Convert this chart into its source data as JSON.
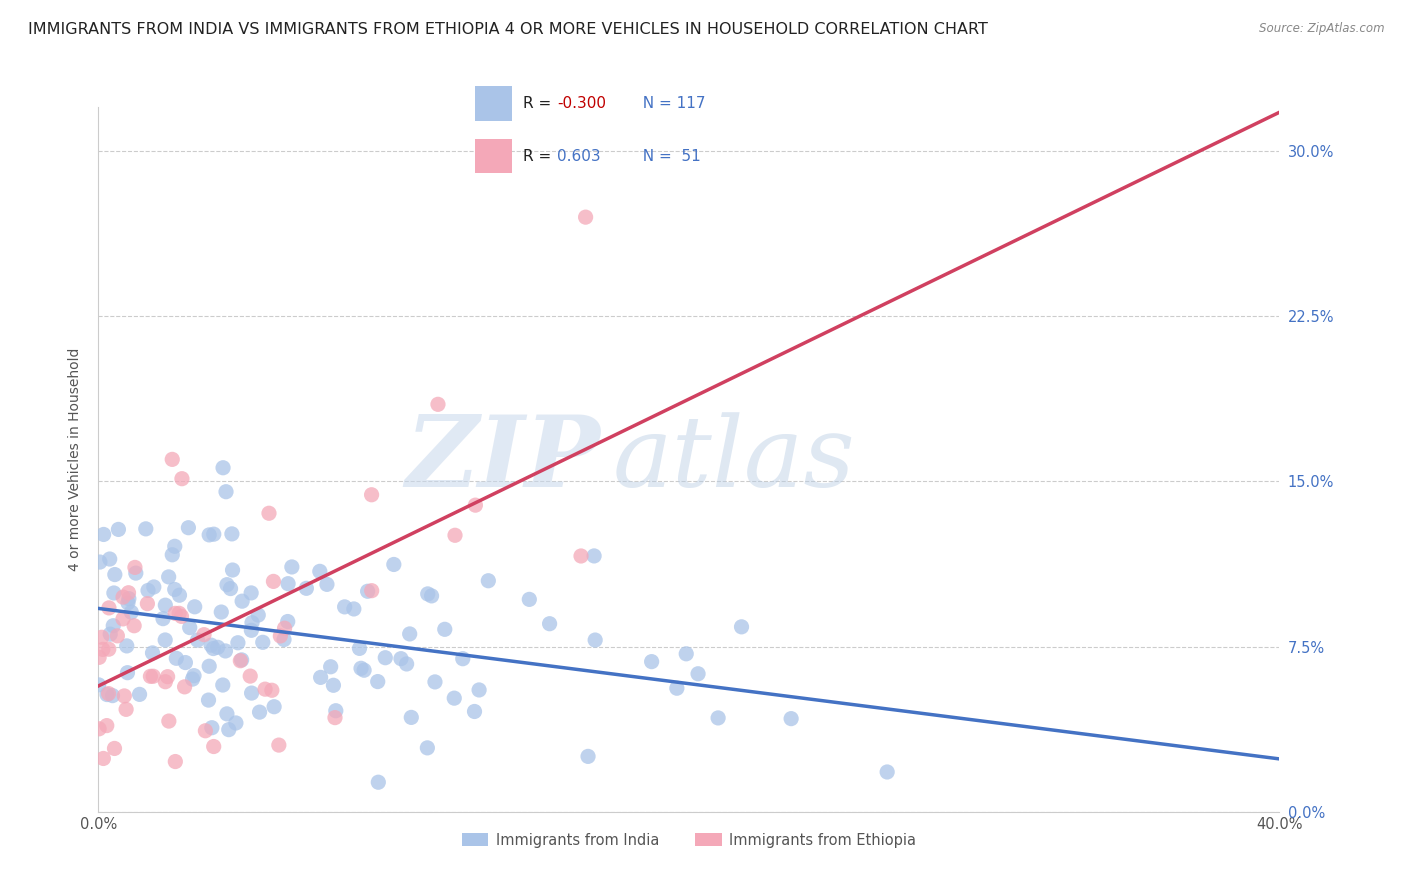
{
  "title": "IMMIGRANTS FROM INDIA VS IMMIGRANTS FROM ETHIOPIA 4 OR MORE VEHICLES IN HOUSEHOLD CORRELATION CHART",
  "source": "Source: ZipAtlas.com",
  "ylabel": "4 or more Vehicles in Household",
  "xlabel_india": "Immigrants from India",
  "xlabel_ethiopia": "Immigrants from Ethiopia",
  "watermark_zip": "ZIP",
  "watermark_atlas": "atlas",
  "xlim": [
    0.0,
    40.0
  ],
  "ylim": [
    0.0,
    32.0
  ],
  "ytick_vals": [
    0.0,
    7.5,
    15.0,
    22.5,
    30.0
  ],
  "india_R": -0.3,
  "india_N": 117,
  "ethiopia_R": 0.603,
  "ethiopia_N": 51,
  "india_color": "#aac4e8",
  "ethiopia_color": "#f4a8b8",
  "india_line_color": "#4472c4",
  "ethiopia_line_color": "#d04060",
  "background_color": "#ffffff",
  "grid_color": "#cccccc",
  "title_fontsize": 11.5,
  "axis_fontsize": 10,
  "tick_fontsize": 10.5,
  "right_tick_color": "#4472c4",
  "legend_text_color": "#4472c4",
  "legend_R_india_color": "#c00000",
  "legend_R_ethiopia_color": "#4472c4"
}
